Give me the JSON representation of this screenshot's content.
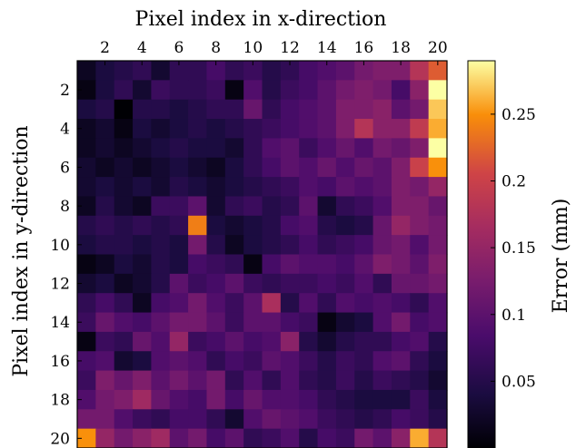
{
  "chart_data": {
    "type": "heatmap",
    "title": "",
    "xlabel": "Pixel index in x-direction",
    "ylabel": "Pixel index in y-direction",
    "x_axis_position": "top",
    "grid": false,
    "x_ticks": [
      "2",
      "4",
      "6",
      "8",
      "10",
      "12",
      "14",
      "16",
      "18",
      "20"
    ],
    "y_ticks": [
      "2",
      "4",
      "6",
      "8",
      "10",
      "12",
      "14",
      "16",
      "18",
      "20"
    ],
    "colorbar": {
      "label": "Error (mm)",
      "range": [
        0.0,
        0.29
      ],
      "ticks": [
        0.05,
        0.1,
        0.15,
        0.2,
        0.25
      ],
      "tick_labels": [
        "0.05",
        "0.1",
        "0.15",
        "0.2",
        "0.25"
      ],
      "colormap": "inferno"
    },
    "values": [
      [
        0.02,
        0.04,
        0.05,
        0.06,
        0.03,
        0.06,
        0.06,
        0.08,
        0.06,
        0.07,
        0.05,
        0.06,
        0.08,
        0.09,
        0.1,
        0.12,
        0.13,
        0.13,
        0.18,
        0.22
      ],
      [
        0.01,
        0.04,
        0.06,
        0.03,
        0.07,
        0.06,
        0.06,
        0.07,
        0.01,
        0.09,
        0.05,
        0.07,
        0.08,
        0.1,
        0.12,
        0.13,
        0.12,
        0.08,
        0.14,
        0.29
      ],
      [
        0.04,
        0.05,
        0.0,
        0.05,
        0.05,
        0.04,
        0.05,
        0.06,
        0.06,
        0.11,
        0.06,
        0.08,
        0.09,
        0.1,
        0.13,
        0.13,
        0.14,
        0.1,
        0.12,
        0.27
      ],
      [
        0.02,
        0.03,
        0.01,
        0.04,
        0.03,
        0.04,
        0.05,
        0.04,
        0.05,
        0.06,
        0.07,
        0.08,
        0.09,
        0.1,
        0.13,
        0.18,
        0.14,
        0.14,
        0.19,
        0.26
      ],
      [
        0.02,
        0.03,
        0.02,
        0.03,
        0.04,
        0.05,
        0.04,
        0.04,
        0.03,
        0.06,
        0.09,
        0.1,
        0.07,
        0.09,
        0.11,
        0.09,
        0.12,
        0.11,
        0.13,
        0.29
      ],
      [
        0.03,
        0.02,
        0.03,
        0.02,
        0.03,
        0.04,
        0.03,
        0.02,
        0.04,
        0.06,
        0.08,
        0.1,
        0.09,
        0.11,
        0.09,
        0.11,
        0.1,
        0.13,
        0.2,
        0.25
      ],
      [
        0.03,
        0.04,
        0.03,
        0.04,
        0.03,
        0.05,
        0.04,
        0.03,
        0.04,
        0.05,
        0.06,
        0.07,
        0.09,
        0.08,
        0.1,
        0.09,
        0.1,
        0.13,
        0.12,
        0.15
      ],
      [
        0.02,
        0.05,
        0.03,
        0.02,
        0.07,
        0.07,
        0.1,
        0.03,
        0.06,
        0.07,
        0.05,
        0.06,
        0.1,
        0.03,
        0.06,
        0.07,
        0.09,
        0.13,
        0.13,
        0.11
      ],
      [
        0.05,
        0.06,
        0.05,
        0.06,
        0.05,
        0.06,
        0.24,
        0.04,
        0.03,
        0.04,
        0.05,
        0.08,
        0.09,
        0.05,
        0.04,
        0.05,
        0.11,
        0.15,
        0.13,
        0.12
      ],
      [
        0.04,
        0.05,
        0.05,
        0.04,
        0.05,
        0.04,
        0.12,
        0.05,
        0.02,
        0.04,
        0.05,
        0.06,
        0.08,
        0.06,
        0.07,
        0.08,
        0.11,
        0.12,
        0.09,
        0.12
      ],
      [
        0.01,
        0.02,
        0.04,
        0.03,
        0.05,
        0.04,
        0.08,
        0.07,
        0.06,
        0.01,
        0.08,
        0.1,
        0.09,
        0.09,
        0.08,
        0.1,
        0.13,
        0.12,
        0.1,
        0.13
      ],
      [
        0.03,
        0.04,
        0.02,
        0.03,
        0.05,
        0.1,
        0.07,
        0.08,
        0.1,
        0.07,
        0.06,
        0.07,
        0.07,
        0.08,
        0.07,
        0.09,
        0.06,
        0.11,
        0.11,
        0.12
      ],
      [
        0.06,
        0.08,
        0.06,
        0.02,
        0.08,
        0.09,
        0.12,
        0.09,
        0.07,
        0.1,
        0.17,
        0.05,
        0.09,
        0.06,
        0.09,
        0.08,
        0.09,
        0.08,
        0.06,
        0.09
      ],
      [
        0.07,
        0.11,
        0.09,
        0.08,
        0.1,
        0.12,
        0.12,
        0.1,
        0.07,
        0.1,
        0.1,
        0.08,
        0.07,
        0.01,
        0.03,
        0.04,
        0.09,
        0.12,
        0.08,
        0.09
      ],
      [
        0.01,
        0.07,
        0.06,
        0.11,
        0.09,
        0.15,
        0.07,
        0.08,
        0.1,
        0.08,
        0.09,
        0.14,
        0.05,
        0.03,
        0.05,
        0.06,
        0.06,
        0.08,
        0.09,
        0.05
      ],
      [
        0.08,
        0.09,
        0.03,
        0.04,
        0.09,
        0.1,
        0.09,
        0.06,
        0.08,
        0.07,
        0.1,
        0.09,
        0.07,
        0.05,
        0.07,
        0.06,
        0.09,
        0.1,
        0.06,
        0.04
      ],
      [
        0.07,
        0.13,
        0.11,
        0.13,
        0.1,
        0.12,
        0.1,
        0.12,
        0.06,
        0.09,
        0.06,
        0.09,
        0.06,
        0.05,
        0.07,
        0.05,
        0.07,
        0.06,
        0.05,
        0.03
      ],
      [
        0.09,
        0.12,
        0.13,
        0.16,
        0.11,
        0.09,
        0.08,
        0.12,
        0.08,
        0.11,
        0.09,
        0.09,
        0.08,
        0.06,
        0.05,
        0.04,
        0.04,
        0.04,
        0.07,
        0.04
      ],
      [
        0.12,
        0.12,
        0.09,
        0.07,
        0.06,
        0.08,
        0.08,
        0.06,
        0.03,
        0.09,
        0.11,
        0.1,
        0.09,
        0.07,
        0.06,
        0.05,
        0.06,
        0.08,
        0.07,
        0.05
      ],
      [
        0.25,
        0.15,
        0.12,
        0.14,
        0.16,
        0.1,
        0.12,
        0.08,
        0.1,
        0.06,
        0.07,
        0.09,
        0.05,
        0.08,
        0.07,
        0.12,
        0.1,
        0.14,
        0.26,
        0.18
      ]
    ]
  }
}
